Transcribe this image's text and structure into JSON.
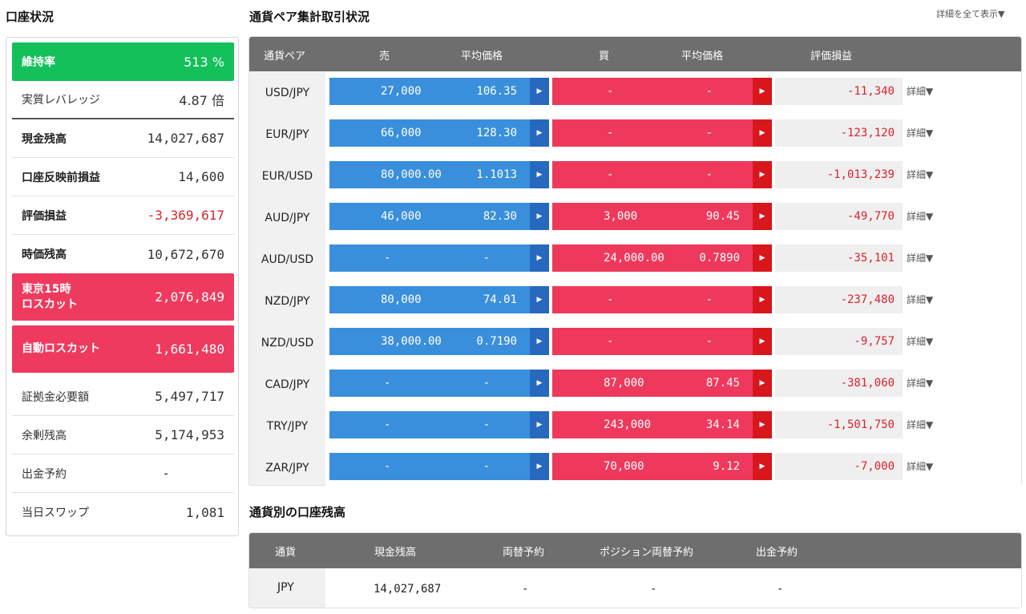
{
  "account": {
    "title": "口座状況",
    "rows": [
      {
        "label": "維持率",
        "value": "513 %"
      },
      {
        "label": "実質レバレッジ",
        "value": "4.87 倍"
      },
      {
        "label": "現金残高",
        "value": "14,027,687"
      },
      {
        "label": "口座反映前損益",
        "value": "14,600"
      },
      {
        "label": "評価損益",
        "value": "-3,369,617"
      },
      {
        "label": "時価残高",
        "value": "10,672,670"
      },
      {
        "label": "東京15時",
        "label2": "ロスカット",
        "value": "2,076,849"
      },
      {
        "label": "自動ロスカット",
        "value": "1,661,480"
      },
      {
        "label": "証拠金必要額",
        "value": "5,497,717"
      },
      {
        "label": "余剰残高",
        "value": "5,174,953"
      },
      {
        "label": "出金予約",
        "value": "-"
      },
      {
        "label": "当日スワップ",
        "value": "1,081"
      }
    ]
  },
  "pairs": {
    "title": "通貨ペア集計取引状況",
    "expand_all": "詳細を全て表示▼",
    "headers": {
      "pair": "通貨ペア",
      "sell": "売",
      "sell_avg": "平均価格",
      "buy": "買",
      "buy_avg": "平均価格",
      "pl": "評価損益"
    },
    "detail_label": "詳細▼",
    "rows": [
      {
        "pair": "USD/JPY",
        "sell": "27,000",
        "sell_avg": "106.35",
        "buy": "-",
        "buy_avg": "-",
        "pl": "-11,340"
      },
      {
        "pair": "EUR/JPY",
        "sell": "66,000",
        "sell_avg": "128.30",
        "buy": "-",
        "buy_avg": "-",
        "pl": "-123,120"
      },
      {
        "pair": "EUR/USD",
        "sell": "80,000.00",
        "sell_avg": "1.1013",
        "buy": "-",
        "buy_avg": "-",
        "pl": "-1,013,239"
      },
      {
        "pair": "AUD/JPY",
        "sell": "46,000",
        "sell_avg": "82.30",
        "buy": "3,000",
        "buy_avg": "90.45",
        "pl": "-49,770"
      },
      {
        "pair": "AUD/USD",
        "sell": "-",
        "sell_avg": "-",
        "buy": "24,000.00",
        "buy_avg": "0.7890",
        "pl": "-35,101"
      },
      {
        "pair": "NZD/JPY",
        "sell": "80,000",
        "sell_avg": "74.01",
        "buy": "-",
        "buy_avg": "-",
        "pl": "-237,480"
      },
      {
        "pair": "NZD/USD",
        "sell": "38,000.00",
        "sell_avg": "0.7190",
        "buy": "-",
        "buy_avg": "-",
        "pl": "-9,757"
      },
      {
        "pair": "CAD/JPY",
        "sell": "-",
        "sell_avg": "-",
        "buy": "87,000",
        "buy_avg": "87.45",
        "pl": "-381,060"
      },
      {
        "pair": "TRY/JPY",
        "sell": "-",
        "sell_avg": "-",
        "buy": "243,000",
        "buy_avg": "34.14",
        "pl": "-1,501,750"
      },
      {
        "pair": "ZAR/JPY",
        "sell": "-",
        "sell_avg": "-",
        "buy": "70,000",
        "buy_avg": "9.12",
        "pl": "-7,000"
      }
    ]
  },
  "currency_balance": {
    "title": "通貨別の口座残高",
    "headers": {
      "currency": "通貨",
      "cash": "現金残高",
      "exchange": "両替予約",
      "position_exchange": "ポジション両替予約",
      "withdraw": "出金予約"
    },
    "rows": [
      {
        "currency": "JPY",
        "cash": "14,027,687",
        "exchange": "-",
        "position_exchange": "-",
        "withdraw": "-"
      }
    ]
  },
  "colors": {
    "green": "#13c05a",
    "red": "#ee3a5e",
    "sell_blue": "#3a8fdc",
    "buy_red": "#ef395c",
    "negative_text": "#d9232e"
  }
}
